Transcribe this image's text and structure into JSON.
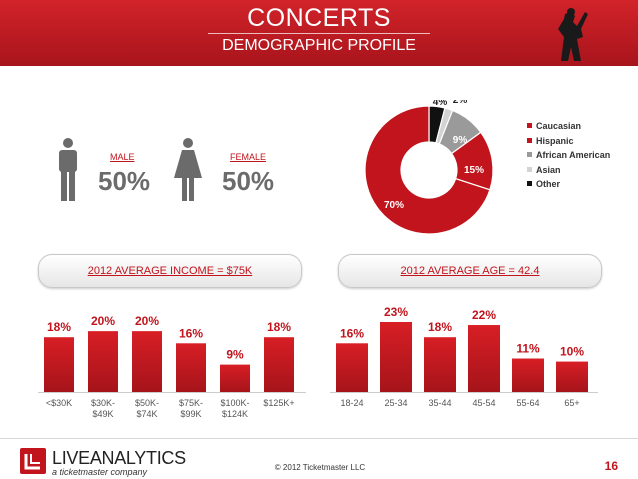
{
  "header": {
    "title": "CONCERTS",
    "subtitle": "DEMOGRAPHIC PROFILE"
  },
  "gender": {
    "male": {
      "label": "MALE",
      "value": "50%"
    },
    "female": {
      "label": "FEMALE",
      "value": "50%"
    }
  },
  "income": {
    "heading": "2012 AVERAGE INCOME = $75K"
  },
  "age": {
    "heading": "2012 AVERAGE AGE = 42.4"
  },
  "footer": {
    "logo": "LIVEANALYTICS",
    "logo_sub": "a ticketmaster company",
    "copyright": "© 2012 Ticketmaster LLC",
    "page": "16"
  },
  "colors": {
    "brand_red": "#c1141c",
    "bar_top": "#d81e25",
    "bar_bottom": "#a5141a"
  },
  "chart_data": [
    {
      "type": "pie",
      "style": "donut",
      "labels": [
        "Caucasian",
        "Hispanic",
        "African American",
        "Asian",
        "Other"
      ],
      "values": [
        70,
        15,
        9,
        2,
        4
      ],
      "value_labels": [
        "70%",
        "15%",
        "9%",
        "2%",
        "4%"
      ],
      "colors": [
        "#c1141c",
        "#c1141c",
        "#9a9a9a",
        "#d3d3d3",
        "#111111"
      ],
      "legend_position": "right"
    },
    {
      "type": "bar",
      "categories": [
        "<$30K",
        "$30K-\n$49K",
        "$50K-\n$74K",
        "$75K-\n$99K",
        "$100K-\n$124K",
        "$125K+"
      ],
      "values": [
        18,
        20,
        20,
        16,
        9,
        18
      ],
      "value_labels": [
        "18%",
        "20%",
        "20%",
        "16%",
        "9%",
        "18%"
      ],
      "ylim": [
        0,
        23
      ]
    },
    {
      "type": "bar",
      "categories": [
        "18-24",
        "25-34",
        "35-44",
        "45-54",
        "55-64",
        "65+"
      ],
      "values": [
        16,
        23,
        18,
        22,
        11,
        10
      ],
      "value_labels": [
        "16%",
        "23%",
        "18%",
        "22%",
        "11%",
        "10%"
      ],
      "ylim": [
        0,
        23
      ]
    }
  ]
}
